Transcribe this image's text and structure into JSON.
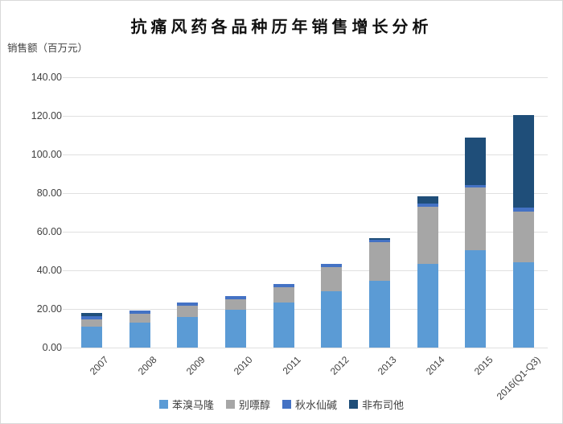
{
  "title": "抗痛风药各品种历年销售增长分析",
  "y_axis_unit": "销售额（百万元）",
  "chart_data": {
    "type": "bar",
    "stacked": true,
    "title": "抗痛风药各品种历年销售增长分析",
    "ylabel": "销售额（百万元）",
    "xlabel": "",
    "grid": true,
    "legend_position": "bottom",
    "ylim": [
      0,
      140
    ],
    "ytick_step": 20,
    "yticks": [
      {
        "value": 0,
        "label": "0.00"
      },
      {
        "value": 20,
        "label": "20.00"
      },
      {
        "value": 40,
        "label": "40.00"
      },
      {
        "value": 60,
        "label": "60.00"
      },
      {
        "value": 80,
        "label": "80.00"
      },
      {
        "value": 100,
        "label": "100.00"
      },
      {
        "value": 120,
        "label": "120.00"
      },
      {
        "value": 140,
        "label": "140.00"
      }
    ],
    "categories": [
      "2007",
      "2008",
      "2009",
      "2010",
      "2011",
      "2012",
      "2013",
      "2014",
      "2015",
      "2016(Q1-Q3)"
    ],
    "series": [
      {
        "name": "苯溴马隆",
        "color": "#5B9BD5",
        "values": [
          10.8,
          13.0,
          15.8,
          19.7,
          23.4,
          29.0,
          34.5,
          43.4,
          50.3,
          44.0
        ]
      },
      {
        "name": "别嘌醇",
        "color": "#A6A6A6",
        "values": [
          4.0,
          4.5,
          5.8,
          5.5,
          8.0,
          12.7,
          20.0,
          29.7,
          32.5,
          26.5
        ]
      },
      {
        "name": "秋水仙碱",
        "color": "#4472C4",
        "values": [
          1.6,
          1.5,
          1.6,
          1.4,
          1.7,
          1.7,
          1.3,
          1.4,
          1.5,
          2.0
        ]
      },
      {
        "name": "非布司他",
        "color": "#1F4E79",
        "values": [
          1.6,
          0,
          0,
          0,
          0,
          0,
          0.7,
          3.8,
          24.4,
          48.0
        ]
      }
    ],
    "totals": [
      18.0,
      19.0,
      23.2,
      26.6,
      33.1,
      43.4,
      56.5,
      78.3,
      108.7,
      120.5
    ]
  }
}
